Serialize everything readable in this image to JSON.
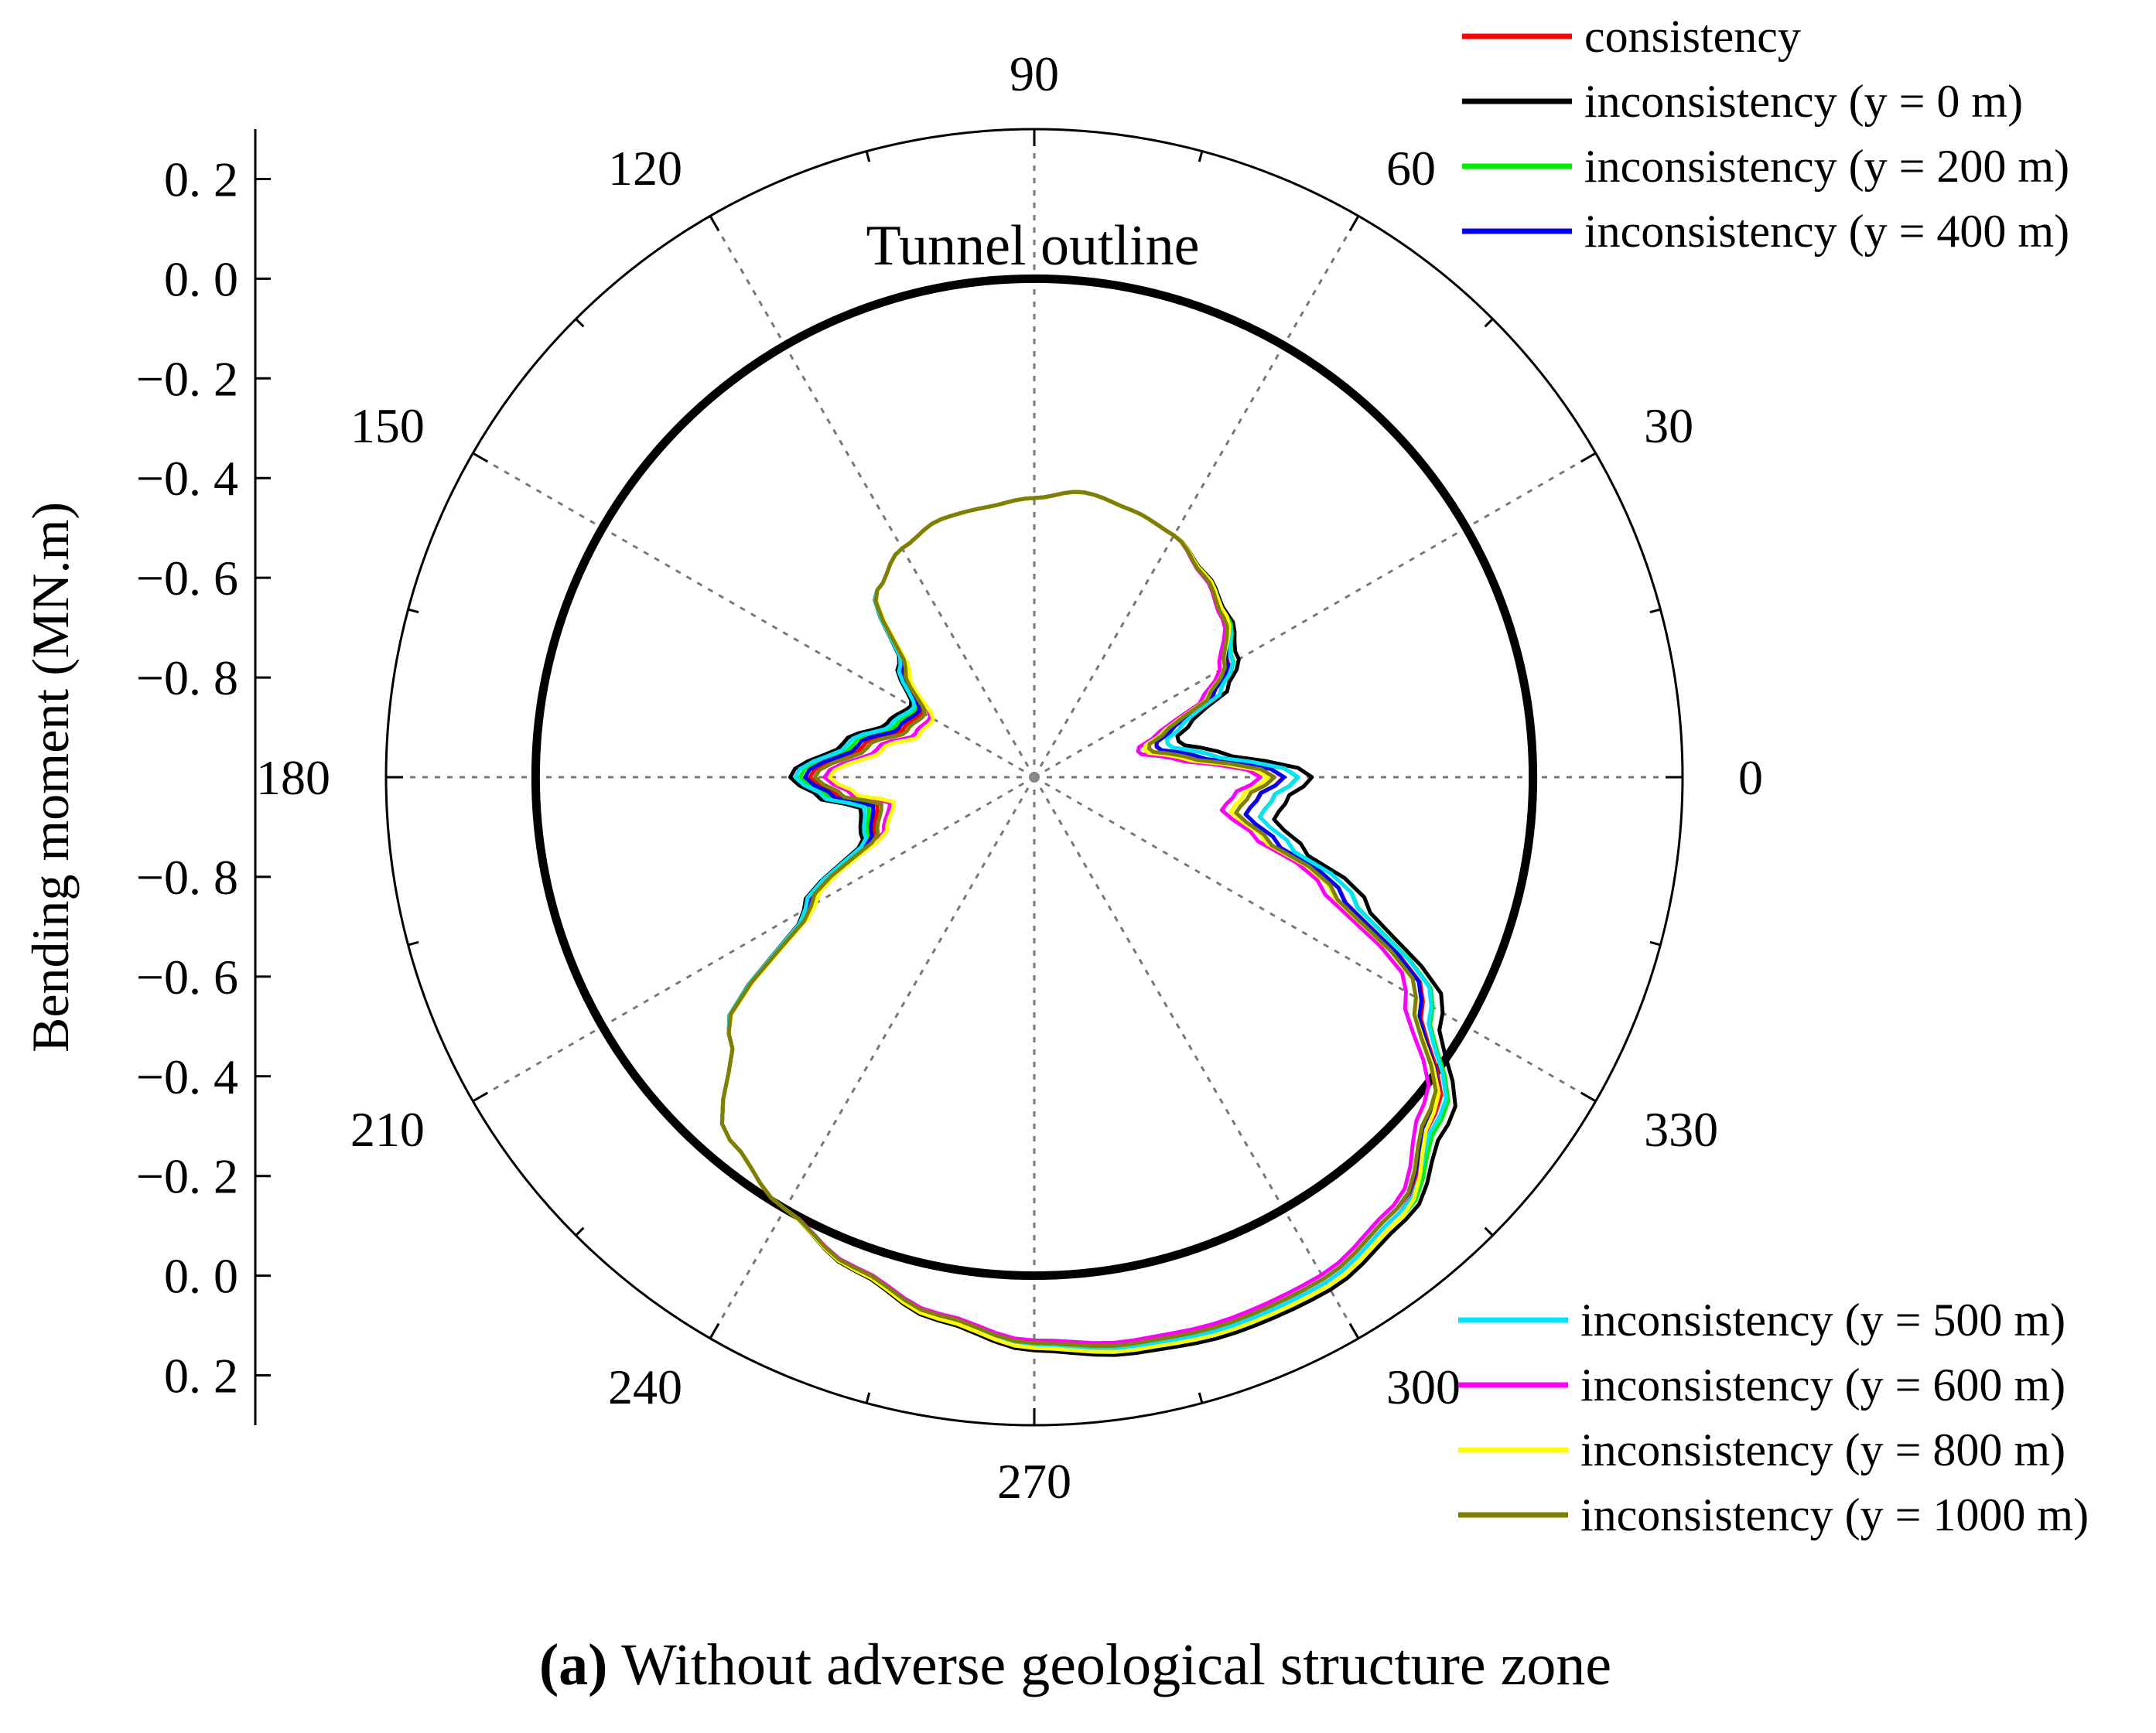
{
  "chart_data": {
    "type": "polar-line",
    "caption": {
      "label": "(a)",
      "text": " Without adverse geological structure zone"
    },
    "ylabel": "Bending moment (MN.m)",
    "radial_ticks": [
      "0. 2",
      "0. 0",
      "−0. 2",
      "−0. 4",
      "−0. 6",
      "−0. 8",
      "−0. 8",
      "−0. 6",
      "−0. 4",
      "−0. 2",
      "0. 0",
      "0. 2"
    ],
    "radial_range": [
      -1.0,
      0.3
    ],
    "angular_ticks": [
      "0",
      "30",
      "60",
      "90",
      "120",
      "150",
      "180",
      "210",
      "240",
      "270",
      "300",
      "330"
    ],
    "outline_label": "Tunnel outline",
    "outline_value": 0.0,
    "legend": {
      "top": [
        "consistency",
        "inconsistency (y = 0 m)",
        "inconsistency (y = 200 m)",
        "inconsistency (y = 400 m)"
      ],
      "bottom": [
        "inconsistency (y = 500 m)",
        "inconsistency (y = 600 m)",
        "inconsistency (y = 800 m)",
        "inconsistency (y = 1000 m)"
      ]
    },
    "series": [
      {
        "name": "consistency",
        "color": "#ff0000"
      },
      {
        "name": "inconsistency (y = 0 m)",
        "color": "#000000"
      },
      {
        "name": "inconsistency (y = 200 m)",
        "color": "#00ee00"
      },
      {
        "name": "inconsistency (y = 400 m)",
        "color": "#0000ff"
      },
      {
        "name": "inconsistency (y = 500 m)",
        "color": "#00e5ff"
      },
      {
        "name": "inconsistency (y = 600 m)",
        "color": "#ff00ff"
      },
      {
        "name": "inconsistency (y = 800 m)",
        "color": "#ffff00"
      },
      {
        "name": "inconsistency (y = 1000 m)",
        "color": "#808000"
      }
    ],
    "moment_profile": {
      "angles_deg": [
        0,
        8,
        12,
        15,
        20,
        25,
        30,
        40,
        50,
        60,
        70,
        80,
        90,
        100,
        110,
        120,
        130,
        140,
        150,
        160,
        170,
        180,
        185,
        190,
        200,
        210,
        220,
        230,
        240,
        250,
        260,
        270,
        280,
        290,
        300,
        310,
        320,
        330,
        340,
        345,
        350,
        355,
        360
      ],
      "moments": [
        -0.5,
        -0.68,
        -0.74,
        -0.75,
        -0.7,
        -0.6,
        -0.55,
        -0.5,
        -0.47,
        -0.44,
        -0.43,
        -0.42,
        -0.44,
        -0.45,
        -0.45,
        -0.47,
        -0.51,
        -0.66,
        -0.74,
        -0.72,
        -0.65,
        -0.55,
        -0.6,
        -0.68,
        -0.66,
        -0.48,
        -0.2,
        -0.05,
        0.0,
        0.05,
        0.1,
        0.14,
        0.16,
        0.17,
        0.17,
        0.14,
        0.05,
        -0.1,
        -0.35,
        -0.5,
        -0.57,
        -0.55,
        -0.5
      ]
    },
    "series_offsets": [
      [
        0,
        0.0,
        0.0
      ],
      [
        0,
        0.02,
        0.04
      ],
      [
        1,
        0.01,
        0.02
      ],
      [
        2,
        -0.01,
        0.01
      ],
      [
        3,
        0.0,
        0.03
      ],
      [
        4,
        -0.02,
        -0.03
      ],
      [
        5,
        0.01,
        -0.04
      ],
      [
        6,
        -0.01,
        -0.01
      ]
    ]
  }
}
